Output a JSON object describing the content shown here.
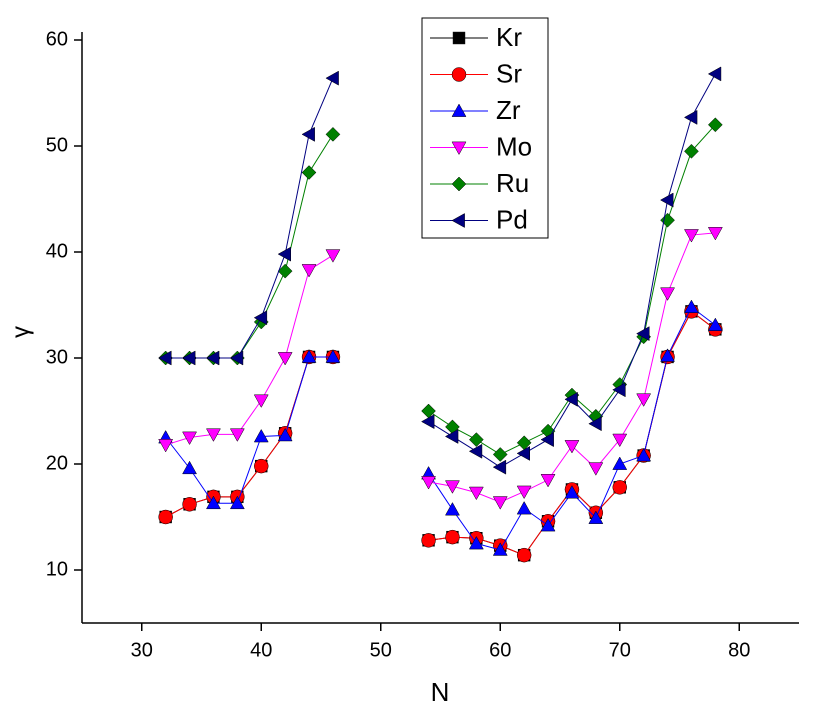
{
  "chart_data": {
    "type": "line",
    "xlabel": "N",
    "ylabel": "γ",
    "x": [
      32,
      34,
      36,
      38,
      40,
      42,
      44,
      46,
      48,
      50,
      52,
      54,
      56,
      58,
      60,
      62,
      64,
      66,
      68,
      70,
      72,
      74,
      76,
      78
    ],
    "series": [
      {
        "name": "Kr",
        "color": "#000000",
        "marker": "square",
        "values": [
          15.0,
          16.2,
          16.9,
          16.9,
          19.8,
          22.9,
          30.1,
          30.1,
          null,
          null,
          null,
          12.8,
          13.1,
          13.0,
          12.3,
          11.4,
          14.6,
          17.6,
          15.4,
          17.8,
          20.8,
          30.1,
          34.4,
          32.7
        ]
      },
      {
        "name": "Sr",
        "color": "#ff0000",
        "marker": "circle",
        "values": [
          15.0,
          16.2,
          16.9,
          16.9,
          19.8,
          22.9,
          30.1,
          30.1,
          null,
          null,
          null,
          12.8,
          13.1,
          13.0,
          12.3,
          11.4,
          14.6,
          17.6,
          15.4,
          17.8,
          20.8,
          30.1,
          34.4,
          32.7
        ]
      },
      {
        "name": "Zr",
        "color": "#0000ff",
        "marker": "triangle-up",
        "values": [
          22.5,
          19.6,
          16.3,
          16.3,
          22.6,
          22.7,
          30.1,
          30.1,
          null,
          null,
          null,
          19.1,
          15.7,
          12.5,
          11.9,
          15.8,
          14.2,
          17.3,
          14.9,
          20.0,
          20.8,
          30.2,
          34.8,
          33.1
        ]
      },
      {
        "name": "Mo",
        "color": "#ff00ff",
        "marker": "triangle-down",
        "values": [
          21.8,
          22.5,
          22.8,
          22.8,
          26.0,
          30.0,
          38.3,
          39.7,
          null,
          null,
          null,
          18.3,
          17.9,
          17.3,
          16.4,
          17.4,
          18.5,
          21.7,
          19.6,
          22.3,
          26.1,
          36.1,
          41.6,
          41.8
        ]
      },
      {
        "name": "Ru",
        "color": "#008000",
        "marker": "diamond",
        "values": [
          30.0,
          30.0,
          30.0,
          30.0,
          33.4,
          38.2,
          47.5,
          51.1,
          null,
          null,
          null,
          25.0,
          23.5,
          22.3,
          20.9,
          22.0,
          23.1,
          26.5,
          24.5,
          27.5,
          32.0,
          43.0,
          49.5,
          52.0
        ]
      },
      {
        "name": "Pd",
        "color": "#000080",
        "marker": "triangle-left",
        "values": [
          30.0,
          30.0,
          30.0,
          30.0,
          33.8,
          39.8,
          51.1,
          56.4,
          null,
          null,
          null,
          24.0,
          22.6,
          21.2,
          19.7,
          21.0,
          22.3,
          26.1,
          23.8,
          27.0,
          32.3,
          44.9,
          52.7,
          56.8
        ]
      }
    ],
    "xlim": [
      25,
      85
    ],
    "xticks": [
      30,
      40,
      50,
      60,
      70,
      80
    ],
    "ylim": [
      5,
      60
    ],
    "yticks": [
      10,
      20,
      30,
      40,
      50,
      60
    ],
    "legend": "top"
  }
}
